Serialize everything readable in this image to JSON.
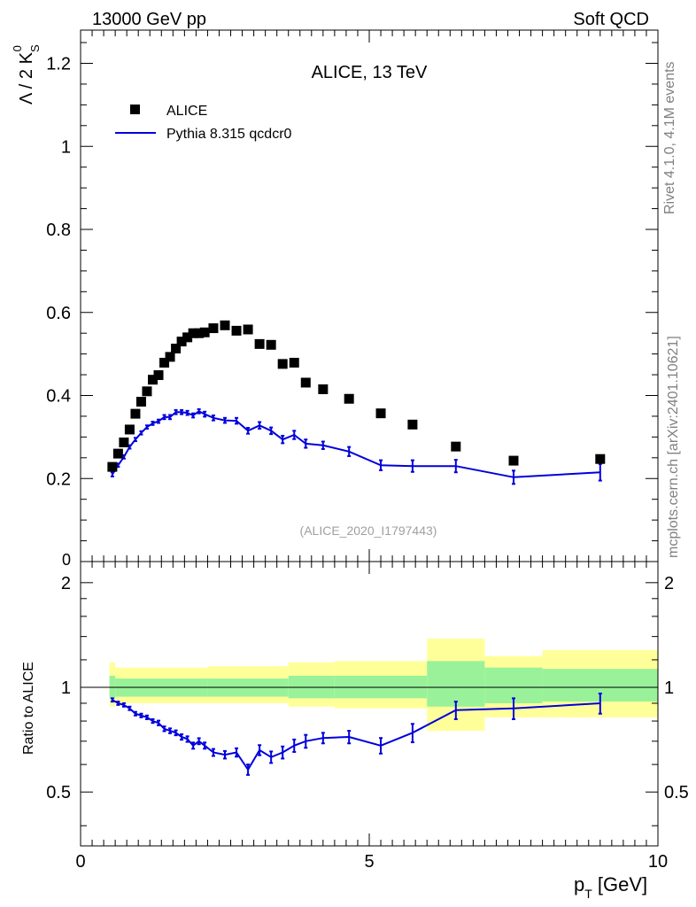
{
  "header": {
    "left": "13000 GeV pp",
    "right": "Soft QCD"
  },
  "side_labels": {
    "version": "Rivet 4.1.0,  4.1M events",
    "source": "mcplots.cern.ch [arXiv:2401.10621]"
  },
  "colors": {
    "data": "#000000",
    "mc": "#0000dd",
    "band_inner": "#99f299",
    "band_outer": "#ffff99",
    "ref_text": "#a0a0a0",
    "side_text": "#808080"
  },
  "chart_data": [
    {
      "type": "scatter",
      "panel": "main",
      "title": "ALICE, 13 TeV",
      "xlabel": "",
      "ylabel_main": "Λ / 2 K",
      "ylabel_sup": "0",
      "ylabel_sub": "S",
      "ylim": [
        0,
        1.28
      ],
      "xlim": [
        0,
        10
      ],
      "yticks": [
        0.2,
        0.4,
        0.6,
        0.8,
        1,
        1.2
      ],
      "ytick_labels": [
        "0.2",
        "0.4",
        "0.6",
        "0.8",
        "1",
        "1.2"
      ],
      "zero_label": "0",
      "reference_label": "(ALICE_2020_I1797443)",
      "legend": [
        {
          "label": "ALICE",
          "kind": "marker"
        },
        {
          "label": "Pythia 8.315 qcdcr0",
          "kind": "line"
        }
      ],
      "series": [
        {
          "name": "ALICE",
          "x": [
            0.55,
            0.65,
            0.75,
            0.85,
            0.95,
            1.05,
            1.15,
            1.25,
            1.35,
            1.45,
            1.55,
            1.65,
            1.75,
            1.85,
            1.95,
            2.05,
            2.15,
            2.3,
            2.5,
            2.7,
            2.9,
            3.1,
            3.3,
            3.5,
            3.7,
            3.9,
            4.2,
            4.65,
            5.2,
            5.75,
            6.5,
            7.5,
            9.0
          ],
          "values": [
            0.228,
            0.26,
            0.287,
            0.318,
            0.356,
            0.385,
            0.41,
            0.438,
            0.449,
            0.479,
            0.493,
            0.513,
            0.53,
            0.54,
            0.55,
            0.55,
            0.552,
            0.562,
            0.569,
            0.556,
            0.559,
            0.524,
            0.522,
            0.476,
            0.479,
            0.431,
            0.415,
            0.392,
            0.357,
            0.33,
            0.277,
            0.243,
            0.247
          ]
        },
        {
          "name": "Pythia 8.315 qcdcr0",
          "x": [
            0.55,
            0.65,
            0.75,
            0.85,
            0.95,
            1.05,
            1.15,
            1.25,
            1.35,
            1.45,
            1.55,
            1.65,
            1.75,
            1.85,
            1.95,
            2.05,
            2.15,
            2.3,
            2.5,
            2.7,
            2.9,
            3.1,
            3.3,
            3.5,
            3.7,
            3.9,
            4.2,
            4.65,
            5.2,
            5.75,
            6.5,
            7.5,
            9.0
          ],
          "values": [
            0.21,
            0.232,
            0.252,
            0.276,
            0.294,
            0.31,
            0.324,
            0.333,
            0.338,
            0.348,
            0.348,
            0.36,
            0.36,
            0.358,
            0.352,
            0.362,
            0.355,
            0.346,
            0.34,
            0.339,
            0.315,
            0.328,
            0.315,
            0.294,
            0.305,
            0.284,
            0.28,
            0.265,
            0.232,
            0.23,
            0.23,
            0.203,
            0.215
          ],
          "errors": [
            0.005,
            0.004,
            0.004,
            0.004,
            0.004,
            0.004,
            0.004,
            0.004,
            0.004,
            0.005,
            0.005,
            0.005,
            0.005,
            0.005,
            0.005,
            0.005,
            0.006,
            0.006,
            0.006,
            0.007,
            0.007,
            0.008,
            0.008,
            0.009,
            0.01,
            0.01,
            0.009,
            0.011,
            0.012,
            0.014,
            0.015,
            0.016,
            0.02
          ]
        }
      ]
    },
    {
      "type": "line",
      "panel": "ratio",
      "xlabel": "p",
      "xlabel_sub": "T",
      "xlabel_unit": " [GeV]",
      "ylabel": "Ratio to ALICE",
      "xlim": [
        0,
        10
      ],
      "ylim": [
        0.35,
        2.3
      ],
      "log_y": true,
      "xticks": [
        0,
        5,
        10
      ],
      "xtick_labels": [
        "0",
        "5",
        "10"
      ],
      "yticks": [
        0.5,
        1,
        2
      ],
      "ytick_labels": [
        "0.5",
        "1",
        "2"
      ],
      "bands": [
        {
          "x0": 0.5,
          "x1": 0.6,
          "inner": [
            0.93,
            1.08
          ],
          "outer": [
            0.88,
            1.18
          ]
        },
        {
          "x0": 0.6,
          "x1": 2.2,
          "inner": [
            0.94,
            1.06
          ],
          "outer": [
            0.9,
            1.14
          ]
        },
        {
          "x0": 2.2,
          "x1": 3.6,
          "inner": [
            0.94,
            1.06
          ],
          "outer": [
            0.9,
            1.15
          ]
        },
        {
          "x0": 3.6,
          "x1": 4.4,
          "inner": [
            0.93,
            1.08
          ],
          "outer": [
            0.88,
            1.18
          ]
        },
        {
          "x0": 4.4,
          "x1": 6.0,
          "inner": [
            0.93,
            1.08
          ],
          "outer": [
            0.87,
            1.19
          ]
        },
        {
          "x0": 6.0,
          "x1": 7.0,
          "inner": [
            0.88,
            1.19
          ],
          "outer": [
            0.75,
            1.38
          ]
        },
        {
          "x0": 7.0,
          "x1": 8.0,
          "inner": [
            0.9,
            1.14
          ],
          "outer": [
            0.82,
            1.23
          ]
        },
        {
          "x0": 8.0,
          "x1": 10.0,
          "inner": [
            0.91,
            1.13
          ],
          "outer": [
            0.82,
            1.28
          ]
        }
      ],
      "series": [
        {
          "name": "Pythia 8.315 qcdcr0 / ALICE",
          "x": [
            0.55,
            0.65,
            0.75,
            0.85,
            0.95,
            1.05,
            1.15,
            1.25,
            1.35,
            1.45,
            1.55,
            1.65,
            1.75,
            1.85,
            1.95,
            2.05,
            2.15,
            2.3,
            2.5,
            2.7,
            2.9,
            3.1,
            3.3,
            3.5,
            3.7,
            3.9,
            4.2,
            4.65,
            5.2,
            5.75,
            6.5,
            7.5,
            9.0
          ],
          "values": [
            0.92,
            0.9,
            0.89,
            0.87,
            0.84,
            0.83,
            0.82,
            0.8,
            0.79,
            0.76,
            0.75,
            0.74,
            0.72,
            0.71,
            0.68,
            0.7,
            0.68,
            0.65,
            0.64,
            0.65,
            0.58,
            0.66,
            0.63,
            0.65,
            0.68,
            0.7,
            0.715,
            0.72,
            0.68,
            0.74,
            0.86,
            0.87,
            0.9
          ],
          "errors": [
            0.01,
            0.01,
            0.01,
            0.01,
            0.01,
            0.01,
            0.01,
            0.01,
            0.012,
            0.012,
            0.012,
            0.012,
            0.013,
            0.013,
            0.014,
            0.014,
            0.014,
            0.015,
            0.016,
            0.018,
            0.02,
            0.022,
            0.024,
            0.026,
            0.028,
            0.03,
            0.025,
            0.03,
            0.035,
            0.045,
            0.05,
            0.06,
            0.06
          ]
        }
      ]
    }
  ]
}
